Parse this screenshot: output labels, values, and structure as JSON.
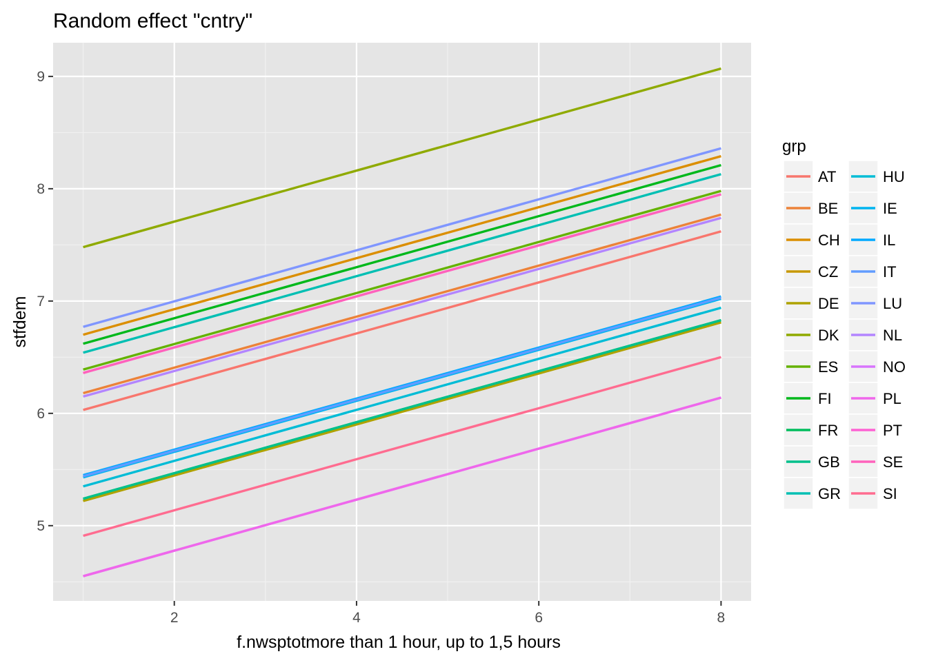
{
  "chart_data": {
    "type": "line",
    "title": "Random effect \"cntry\"",
    "xlabel": "f.nwsptotmore than 1 hour, up to 1,5 hours",
    "ylabel": "stfdem",
    "xlim": [
      0.67,
      8.33
    ],
    "ylim": [
      4.33,
      9.3
    ],
    "x_ticks": [
      2,
      4,
      6,
      8
    ],
    "x_tick_labels": [
      "2",
      "4",
      "6",
      "8"
    ],
    "y_ticks": [
      5,
      6,
      7,
      8,
      9
    ],
    "y_tick_labels": [
      "5",
      "6",
      "7",
      "8",
      "9"
    ],
    "grid": true,
    "background": "#E5E5E5",
    "x": [
      1,
      8
    ],
    "legend": {
      "title": "grp",
      "position": "right",
      "columns": 2
    },
    "series": [
      {
        "name": "AT",
        "color": "#F8766D",
        "values": [
          6.03,
          7.62
        ]
      },
      {
        "name": "BE",
        "color": "#EC8239",
        "values": [
          6.18,
          7.77
        ]
      },
      {
        "name": "CH",
        "color": "#DB8E00",
        "values": [
          6.7,
          8.29
        ]
      },
      {
        "name": "CZ",
        "color": "#C79800",
        "values": [
          5.22,
          6.81
        ]
      },
      {
        "name": "DE",
        "color": "#AEA200",
        "values": [
          5.22,
          6.81
        ]
      },
      {
        "name": "DK",
        "color": "#8FAA00",
        "values": [
          7.48,
          9.07
        ]
      },
      {
        "name": "ES",
        "color": "#64B200",
        "values": [
          6.39,
          7.98
        ]
      },
      {
        "name": "FI",
        "color": "#00B81B",
        "values": [
          6.62,
          8.21
        ]
      },
      {
        "name": "FR",
        "color": "#00BD5C",
        "values": [
          5.24,
          6.83
        ]
      },
      {
        "name": "GB",
        "color": "#00C08B",
        "values": [
          5.24,
          6.83
        ]
      },
      {
        "name": "GR",
        "color": "#00BFB3",
        "values": [
          6.54,
          8.13
        ]
      },
      {
        "name": "HU",
        "color": "#00BCD6",
        "values": [
          5.35,
          6.94
        ]
      },
      {
        "name": "IE",
        "color": "#00B4F0",
        "values": [
          5.43,
          7.02
        ]
      },
      {
        "name": "IL",
        "color": "#00A9FF",
        "values": [
          5.45,
          7.04
        ]
      },
      {
        "name": "IT",
        "color": "#619CFF",
        "values": [
          5.44,
          7.03
        ]
      },
      {
        "name": "LU",
        "color": "#7F96FF",
        "values": [
          6.77,
          8.36
        ]
      },
      {
        "name": "NL",
        "color": "#B385FF",
        "values": [
          6.15,
          7.74
        ]
      },
      {
        "name": "NO",
        "color": "#D874FD",
        "values": [
          4.55,
          6.14
        ]
      },
      {
        "name": "PL",
        "color": "#EF67EB",
        "values": [
          4.55,
          6.14
        ]
      },
      {
        "name": "PT",
        "color": "#FD61D3",
        "values": [
          6.36,
          7.95
        ]
      },
      {
        "name": "SE",
        "color": "#FF62BC",
        "values": [
          6.36,
          7.95
        ]
      },
      {
        "name": "SI",
        "color": "#FF6C90",
        "values": [
          4.91,
          6.5
        ]
      }
    ]
  }
}
